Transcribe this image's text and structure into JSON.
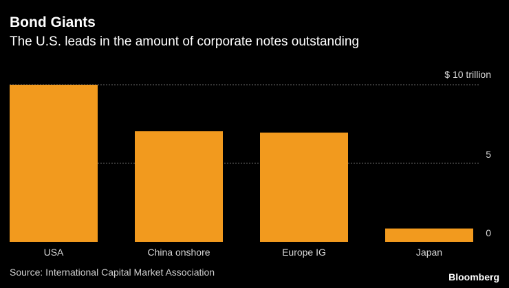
{
  "chart_data": {
    "type": "bar",
    "title": "Bond Giants",
    "subtitle": "The U.S. leads in the amount of corporate notes outstanding",
    "categories": [
      "USA",
      "China onshore",
      "Europe IG",
      "Japan"
    ],
    "values": [
      10.0,
      7.05,
      6.95,
      0.85
    ],
    "unit": "trillion",
    "ylim": [
      0,
      10
    ],
    "yticks": [
      0,
      5,
      10
    ],
    "ytick_labels": [
      "0",
      "5",
      "$ 10 trillion"
    ],
    "grid": true,
    "bar_color": "#f29a1e",
    "grid_color": "#6a6a6a"
  },
  "footer": {
    "source": "Source: International Capital Market Association",
    "brand": "Bloomberg"
  }
}
